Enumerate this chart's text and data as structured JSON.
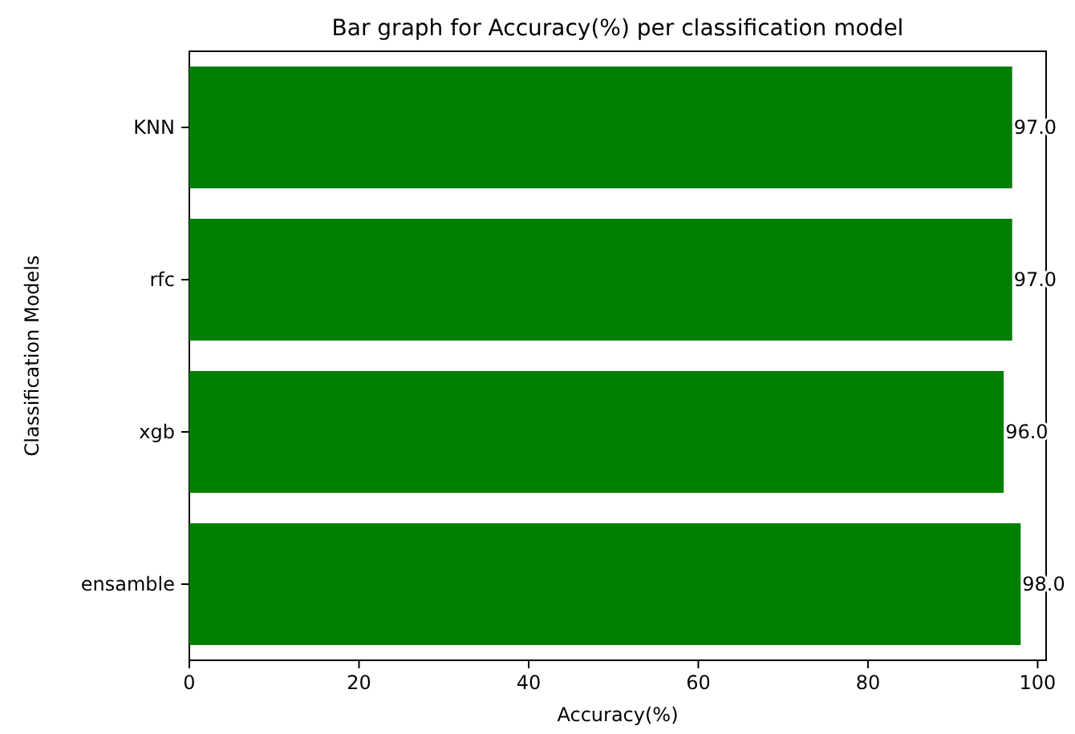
{
  "chart_data": {
    "type": "bar",
    "orientation": "horizontal",
    "title": "Bar graph for Accuracy(%) per classification model",
    "xlabel": "Accuracy(%)",
    "ylabel": "Classification Models",
    "categories": [
      "KNN",
      "rfc",
      "xgb",
      "ensamble"
    ],
    "values": [
      97,
      97,
      96,
      98
    ],
    "color": "#008000",
    "value_labels": [
      "97.0",
      "97.0",
      "96.0",
      "98.0"
    ],
    "xlim": [
      0,
      101
    ],
    "xticks": [
      0,
      20,
      40,
      60,
      80,
      100
    ],
    "grid": false
  }
}
